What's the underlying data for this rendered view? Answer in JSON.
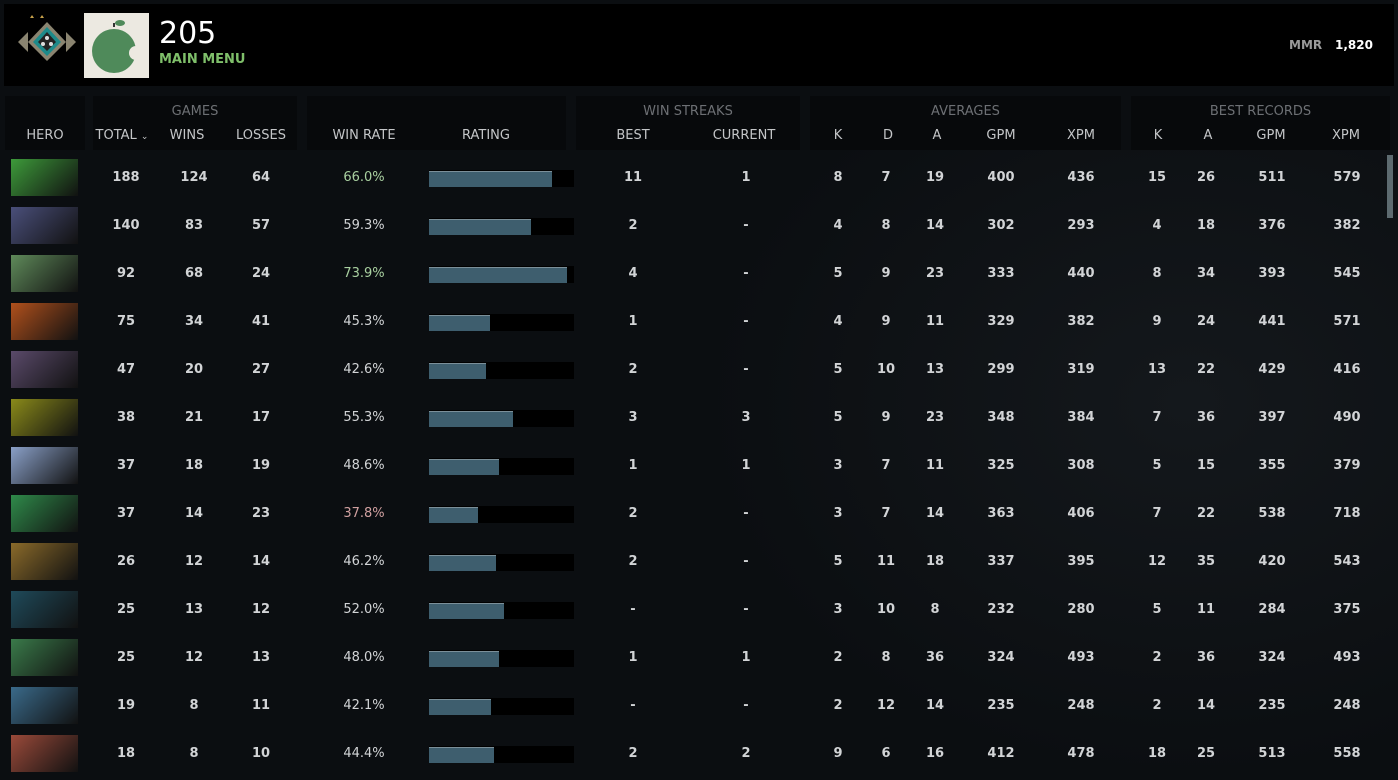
{
  "header": {
    "level": "205",
    "subtitle": "MAIN MENU",
    "mmr_label": "MMR",
    "mmr_value": "1,820",
    "rank_icon": "rank-medal-icon",
    "avatar_icon": "green-apple-avatar"
  },
  "groups": {
    "games": "GAMES",
    "win_streaks": "WIN STREAKS",
    "averages": "AVERAGES",
    "best_records": "BEST RECORDS"
  },
  "columns": {
    "hero": "HERO",
    "total": "TOTAL",
    "wins": "WINS",
    "losses": "LOSSES",
    "win_rate": "WIN RATE",
    "rating": "RATING",
    "best": "BEST",
    "current": "CURRENT",
    "k": "K",
    "d": "D",
    "a": "A",
    "gpm": "GPM",
    "xpm": "XPM",
    "best_k": "K",
    "best_a": "A",
    "best_gpm": "GPM",
    "best_xpm": "XPM"
  },
  "sort_indicator": "chevron-down-icon",
  "colors": {
    "win_rate_good": "#a9d0a0",
    "win_rate_bad": "#d0a0a0",
    "win_rate_neutral": "#d2d4d6",
    "rating_fill": "#3e5e6e"
  },
  "rows": [
    {
      "portrait_color": "#3d9a3a",
      "total": "188",
      "wins": "124",
      "losses": "64",
      "win_rate": "66.0%",
      "win_rate_tone": "good",
      "rating": 0.85,
      "best": "11",
      "current": "1",
      "k": "8",
      "d": "7",
      "a": "19",
      "gpm": "400",
      "xpm": "436",
      "best_k": "15",
      "best_a": "26",
      "best_gpm": "511",
      "best_xpm": "579"
    },
    {
      "portrait_color": "#4a4f7a",
      "total": "140",
      "wins": "83",
      "losses": "57",
      "win_rate": "59.3%",
      "win_rate_tone": "neutral",
      "rating": 0.7,
      "best": "2",
      "current": "-",
      "k": "4",
      "d": "8",
      "a": "14",
      "gpm": "302",
      "xpm": "293",
      "best_k": "4",
      "best_a": "18",
      "best_gpm": "376",
      "best_xpm": "382"
    },
    {
      "portrait_color": "#5f8a5a",
      "total": "92",
      "wins": "68",
      "losses": "24",
      "win_rate": "73.9%",
      "win_rate_tone": "good",
      "rating": 0.95,
      "best": "4",
      "current": "-",
      "k": "5",
      "d": "9",
      "a": "23",
      "gpm": "333",
      "xpm": "440",
      "best_k": "8",
      "best_a": "34",
      "best_gpm": "393",
      "best_xpm": "545"
    },
    {
      "portrait_color": "#b0501c",
      "total": "75",
      "wins": "34",
      "losses": "41",
      "win_rate": "45.3%",
      "win_rate_tone": "neutral",
      "rating": 0.42,
      "best": "1",
      "current": "-",
      "k": "4",
      "d": "9",
      "a": "11",
      "gpm": "329",
      "xpm": "382",
      "best_k": "9",
      "best_a": "24",
      "best_gpm": "441",
      "best_xpm": "571"
    },
    {
      "portrait_color": "#5a4a6a",
      "total": "47",
      "wins": "20",
      "losses": "27",
      "win_rate": "42.6%",
      "win_rate_tone": "neutral",
      "rating": 0.39,
      "best": "2",
      "current": "-",
      "k": "5",
      "d": "10",
      "a": "13",
      "gpm": "299",
      "xpm": "319",
      "best_k": "13",
      "best_a": "22",
      "best_gpm": "429",
      "best_xpm": "416"
    },
    {
      "portrait_color": "#8a8a1a",
      "total": "38",
      "wins": "21",
      "losses": "17",
      "win_rate": "55.3%",
      "win_rate_tone": "neutral",
      "rating": 0.58,
      "best": "3",
      "current": "3",
      "k": "5",
      "d": "9",
      "a": "23",
      "gpm": "348",
      "xpm": "384",
      "best_k": "7",
      "best_a": "36",
      "best_gpm": "397",
      "best_xpm": "490"
    },
    {
      "portrait_color": "#8aa0c8",
      "total": "37",
      "wins": "18",
      "losses": "19",
      "win_rate": "48.6%",
      "win_rate_tone": "neutral",
      "rating": 0.48,
      "best": "1",
      "current": "1",
      "k": "3",
      "d": "7",
      "a": "11",
      "gpm": "325",
      "xpm": "308",
      "best_k": "5",
      "best_a": "15",
      "best_gpm": "355",
      "best_xpm": "379"
    },
    {
      "portrait_color": "#2f8a4a",
      "total": "37",
      "wins": "14",
      "losses": "23",
      "win_rate": "37.8%",
      "win_rate_tone": "bad",
      "rating": 0.34,
      "best": "2",
      "current": "-",
      "k": "3",
      "d": "7",
      "a": "14",
      "gpm": "363",
      "xpm": "406",
      "best_k": "7",
      "best_a": "22",
      "best_gpm": "538",
      "best_xpm": "718"
    },
    {
      "portrait_color": "#8a6a2a",
      "total": "26",
      "wins": "12",
      "losses": "14",
      "win_rate": "46.2%",
      "win_rate_tone": "neutral",
      "rating": 0.46,
      "best": "2",
      "current": "-",
      "k": "5",
      "d": "11",
      "a": "18",
      "gpm": "337",
      "xpm": "395",
      "best_k": "12",
      "best_a": "35",
      "best_gpm": "420",
      "best_xpm": "543"
    },
    {
      "portrait_color": "#1f4a5a",
      "total": "25",
      "wins": "13",
      "losses": "12",
      "win_rate": "52.0%",
      "win_rate_tone": "neutral",
      "rating": 0.52,
      "best": "-",
      "current": "-",
      "k": "3",
      "d": "10",
      "a": "8",
      "gpm": "232",
      "xpm": "280",
      "best_k": "5",
      "best_a": "11",
      "best_gpm": "284",
      "best_xpm": "375"
    },
    {
      "portrait_color": "#3a7a4a",
      "total": "25",
      "wins": "12",
      "losses": "13",
      "win_rate": "48.0%",
      "win_rate_tone": "neutral",
      "rating": 0.48,
      "best": "1",
      "current": "1",
      "k": "2",
      "d": "8",
      "a": "36",
      "gpm": "324",
      "xpm": "493",
      "best_k": "2",
      "best_a": "36",
      "best_gpm": "324",
      "best_xpm": "493"
    },
    {
      "portrait_color": "#3a6a8a",
      "total": "19",
      "wins": "8",
      "losses": "11",
      "win_rate": "42.1%",
      "win_rate_tone": "neutral",
      "rating": 0.43,
      "best": "-",
      "current": "-",
      "k": "2",
      "d": "12",
      "a": "14",
      "gpm": "235",
      "xpm": "248",
      "best_k": "2",
      "best_a": "14",
      "best_gpm": "235",
      "best_xpm": "248"
    },
    {
      "portrait_color": "#9a4a3a",
      "total": "18",
      "wins": "8",
      "losses": "10",
      "win_rate": "44.4%",
      "win_rate_tone": "neutral",
      "rating": 0.45,
      "best": "2",
      "current": "2",
      "k": "9",
      "d": "6",
      "a": "16",
      "gpm": "412",
      "xpm": "478",
      "best_k": "18",
      "best_a": "25",
      "best_gpm": "513",
      "best_xpm": "558"
    }
  ]
}
